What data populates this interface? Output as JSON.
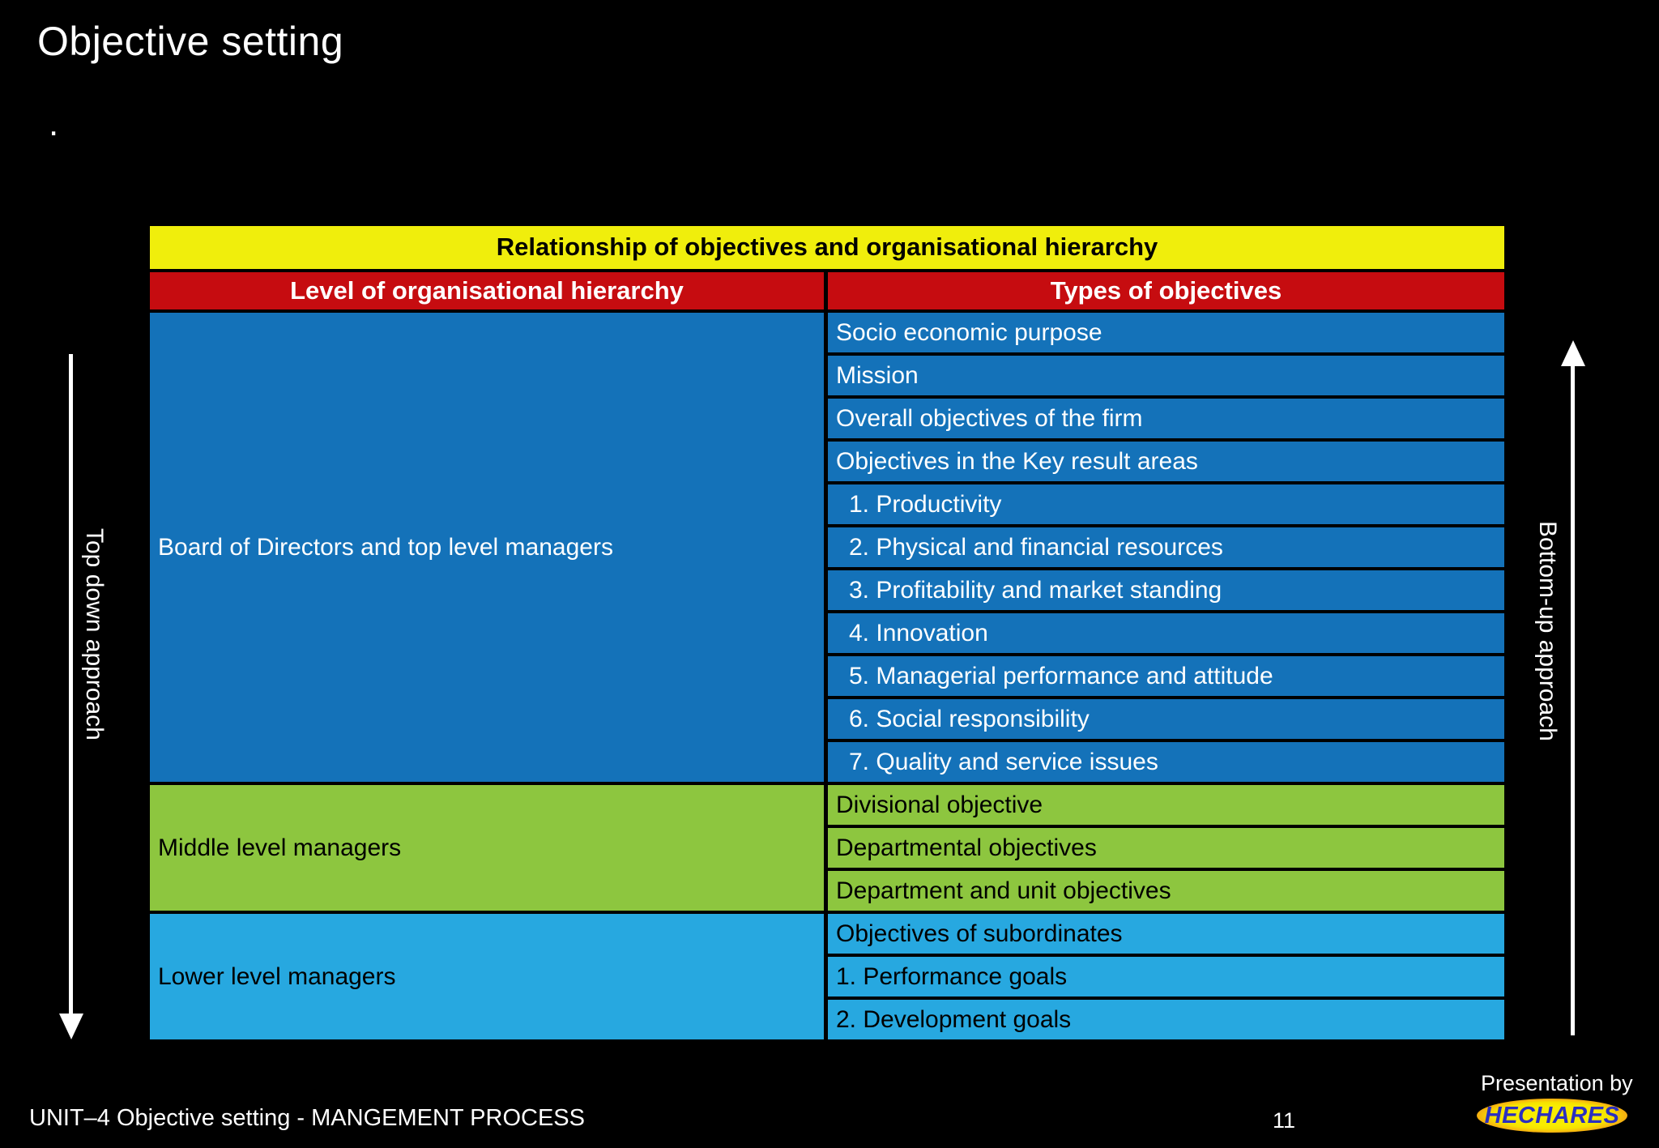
{
  "slide": {
    "title": "Objective setting",
    "bullet_dot": ".",
    "footer_left": "UNIT–4 Objective setting - MANGEMENT PROCESS",
    "page_number": "11",
    "presented_by": "Presentation by",
    "logo_text": "HECHARES"
  },
  "arrows": {
    "left_label": "Top down approach",
    "right_label": "Bottom-up approach"
  },
  "table": {
    "title": "Relationship of objectives and organisational hierarchy",
    "columns": [
      "Level of organisational hierarchy",
      "Types of objectives"
    ],
    "sections": [
      {
        "level": "Board of Directors and top level managers",
        "bg": "#1472b9",
        "text_color": "#ffffff",
        "objectives": [
          {
            "text": "Socio economic purpose",
            "indent": false
          },
          {
            "text": "Mission",
            "indent": false
          },
          {
            "text": "Overall objectives of the firm",
            "indent": false
          },
          {
            "text": "Objectives in the Key result areas",
            "indent": false
          },
          {
            "text": "1. Productivity",
            "indent": true
          },
          {
            "text": "2. Physical and financial resources",
            "indent": true
          },
          {
            "text": "3. Profitability and market standing",
            "indent": true
          },
          {
            "text": "4. Innovation",
            "indent": true
          },
          {
            "text": "5. Managerial performance and attitude",
            "indent": true
          },
          {
            "text": "6. Social responsibility",
            "indent": true
          },
          {
            "text": "7. Quality and service issues",
            "indent": true
          }
        ]
      },
      {
        "level": "Middle level managers",
        "bg": "#8dc63f",
        "text_color": "#000000",
        "objectives": [
          {
            "text": "Divisional objective",
            "indent": false
          },
          {
            "text": "Departmental objectives",
            "indent": false
          },
          {
            "text": "Department and unit objectives",
            "indent": false
          }
        ]
      },
      {
        "level": "Lower level managers",
        "bg": "#27a8e0",
        "text_color": "#000000",
        "objectives": [
          {
            "text": "Objectives of subordinates",
            "indent": false
          },
          {
            "text": "1. Performance goals",
            "indent": false
          },
          {
            "text": "2. Development goals",
            "indent": false
          }
        ]
      }
    ]
  },
  "colors": {
    "background": "#000000",
    "table_title_bg": "#f0ee0c",
    "header_bg": "#c60c10",
    "header_text": "#ffffff",
    "row_border": "#000000",
    "arrow": "#ffffff",
    "logo_text_color": "#2b2fc0"
  }
}
